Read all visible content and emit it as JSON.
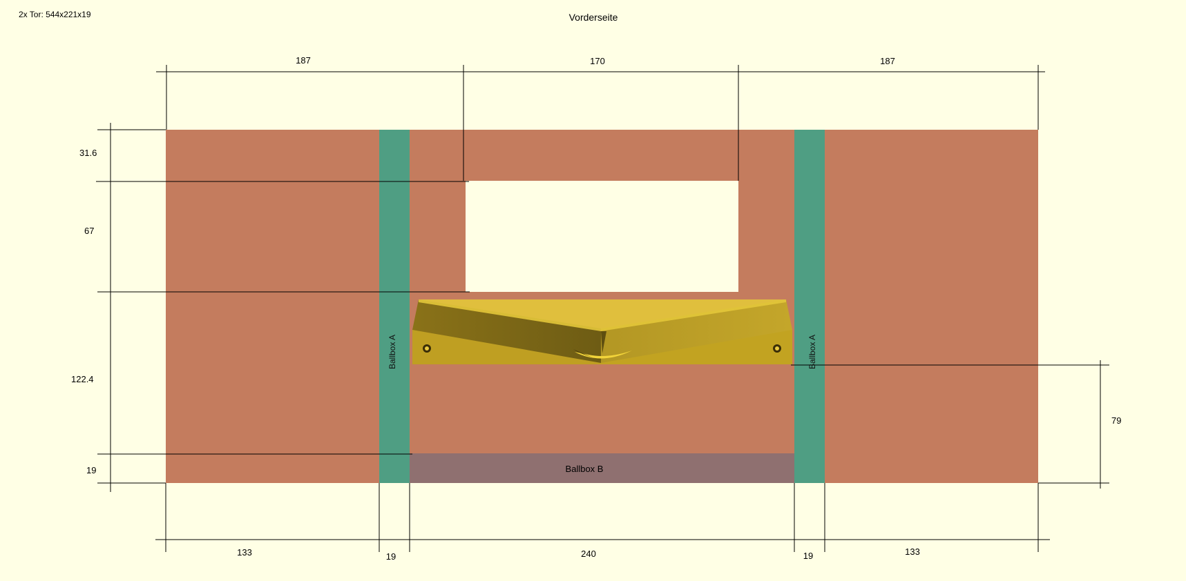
{
  "header": {
    "part_info": "2x Tor: 544x221x19",
    "view_title": "Vorderseite"
  },
  "panel": {
    "wall_color": "#c47c5e",
    "post_color": "#4f9e83",
    "bottom_color": "#8f7070",
    "ramp_color": "#c2a321",
    "background_color": "#ffffe5",
    "post_left_label": "Ballbox A",
    "post_right_label": "Ballbox A",
    "bottom_label": "Ballbox B"
  },
  "dimensions": {
    "top": [
      "187",
      "170",
      "187"
    ],
    "bottom": [
      "133",
      "19",
      "240",
      "19",
      "133"
    ],
    "left": [
      "31.6",
      "67",
      "122.4",
      "19"
    ],
    "right": [
      "79"
    ]
  }
}
